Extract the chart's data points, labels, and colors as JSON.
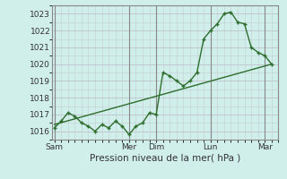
{
  "title": "",
  "xlabel": "Pression niveau de la mer( hPa )",
  "ylabel": "",
  "bg_color": "#d0eeea",
  "grid_major_color": "#c0c8d0",
  "grid_minor_color": "#c8d4d8",
  "line_color": "#2d6e2d",
  "ylim": [
    1015.5,
    1023.5
  ],
  "yticks": [
    1016,
    1017,
    1018,
    1019,
    1020,
    1021,
    1022,
    1023
  ],
  "day_labels": [
    "Sam",
    "Mer",
    "Dim",
    "Lun",
    "Mar"
  ],
  "day_positions": [
    0,
    5.5,
    7.5,
    11.5,
    15.5
  ],
  "vline_positions": [
    0,
    5.5,
    7.5,
    11.5,
    15.5
  ],
  "curve_x": [
    0,
    0.5,
    1.0,
    1.5,
    2.0,
    2.5,
    3.0,
    3.5,
    4.0,
    4.5,
    5.0,
    5.5,
    6.0,
    6.5,
    7.0,
    7.5,
    8.0,
    8.5,
    9.0,
    9.5,
    10.0,
    10.5,
    11.0,
    11.5,
    12.0,
    12.5,
    13.0,
    13.5,
    14.0,
    14.5,
    15.0,
    15.5,
    16.0
  ],
  "curve_y": [
    1016.2,
    1016.6,
    1017.1,
    1016.9,
    1016.5,
    1016.3,
    1016.0,
    1016.4,
    1016.2,
    1016.6,
    1016.3,
    1015.8,
    1016.3,
    1016.5,
    1017.1,
    1017.0,
    1019.5,
    1019.3,
    1019.0,
    1018.7,
    1019.0,
    1019.5,
    1021.5,
    1022.0,
    1022.4,
    1023.0,
    1023.1,
    1022.5,
    1022.4,
    1021.0,
    1020.7,
    1020.5,
    1020.0
  ],
  "trend_x": [
    0,
    16.0
  ],
  "trend_y": [
    1016.4,
    1020.0
  ],
  "xlim": [
    -0.2,
    16.5
  ]
}
